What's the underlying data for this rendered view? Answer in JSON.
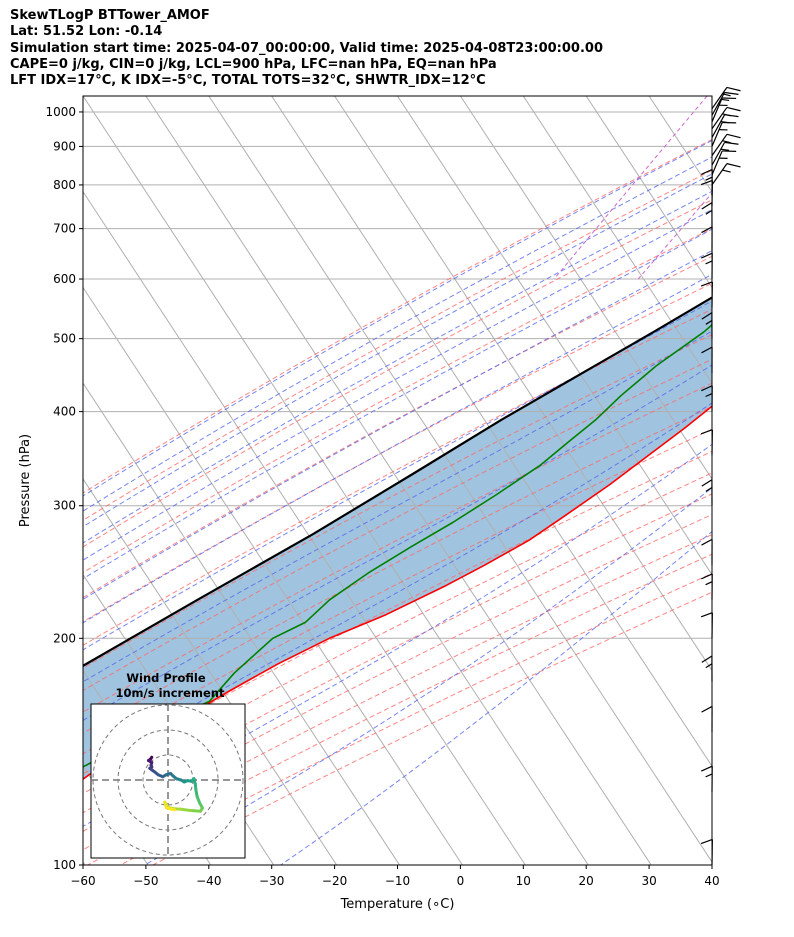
{
  "header": {
    "line1": "SkewTLogP BTTower_AMOF",
    "line2": "Lat: 51.52   Lon: -0.14",
    "line3": "Simulation start time: 2025-04-07_00:00:00, Valid time: 2025-04-08T23:00:00.00",
    "line4": "CAPE=0 j/kg, CIN=0 j/kg, LCL=900 hPa, LFC=nan hPa, EQ=nan hPa",
    "line5": "LFT IDX=17°C, K IDX=-5°C, TOTAL TOTS=32°C, SHWTR_IDX=12°C"
  },
  "colors": {
    "temperature": "#ff0000",
    "dewpoint": "#008000",
    "parcel": "#000000",
    "shade": "#a0c4df",
    "dry_adiabat": "#ff6666",
    "moist_adiabat": "#5566ee",
    "mixing_ratio": "#cc66cc"
  },
  "chart_data": [
    {
      "type": "line",
      "kind": "skew-t log-p",
      "xlabel": "Temperature (∘C)",
      "ylabel": "Pressure (hPa)",
      "xlim": [
        -60,
        40
      ],
      "ylim": [
        1050,
        100
      ],
      "yscale": "log",
      "grid": true,
      "xticks": [
        "−60",
        "−50",
        "−40",
        "−30",
        "−20",
        "−10",
        "0",
        "10",
        "20",
        "30",
        "40"
      ],
      "yticks": [
        "1000",
        "900",
        "800",
        "700",
        "600",
        "500",
        "400",
        "300",
        "200",
        "100"
      ],
      "series": [
        {
          "key": "temperature",
          "points": [
            [
              8.0,
              1010
            ],
            [
              7.8,
              995
            ],
            [
              7.5,
              960
            ],
            [
              7.0,
              930
            ],
            [
              7.5,
              900
            ],
            [
              8.5,
              870
            ],
            [
              9.0,
              850
            ],
            [
              9.0,
              800
            ],
            [
              8.5,
              760
            ],
            [
              7.6,
              700
            ],
            [
              6.5,
              650
            ],
            [
              3.5,
              575
            ],
            [
              -1.0,
              500
            ],
            [
              -5.5,
              440
            ],
            [
              -10.0,
              380
            ],
            [
              -16.0,
              320
            ],
            [
              -20.0,
              290
            ],
            [
              -23.0,
              270
            ],
            [
              -27.5,
              250
            ],
            [
              -31.5,
              235
            ],
            [
              -38.0,
              215
            ],
            [
              -44.5,
              200
            ],
            [
              -50.0,
              185
            ],
            [
              -55.0,
              170
            ],
            [
              -60.0,
              155
            ],
            [
              -64.5,
              145
            ],
            [
              -67.5,
              135
            ],
            [
              -70.5,
              125
            ],
            [
              -73.5,
              115
            ],
            [
              -77.0,
              100
            ]
          ]
        },
        {
          "key": "dewpoint",
          "points": [
            [
              0.5,
              1010
            ],
            [
              0.4,
              995
            ],
            [
              -1.5,
              980
            ],
            [
              -3.5,
              940
            ],
            [
              -6.0,
              910
            ],
            [
              -8.0,
              880
            ],
            [
              -9.0,
              860
            ],
            [
              -9.6,
              820
            ],
            [
              -9.7,
              790
            ],
            [
              -9.8,
              760
            ],
            [
              -10.0,
              720
            ],
            [
              -9.5,
              690
            ],
            [
              -9.0,
              660
            ],
            [
              -10.5,
              620
            ],
            [
              -12.5,
              580
            ],
            [
              -15.0,
              550
            ],
            [
              -17.0,
              510
            ],
            [
              -21.0,
              460
            ],
            [
              -23.5,
              420
            ],
            [
              -25.0,
              390
            ],
            [
              -27.0,
              365
            ],
            [
              -29.0,
              340
            ],
            [
              -33.0,
              310
            ],
            [
              -37.0,
              285
            ],
            [
              -41.0,
              265
            ],
            [
              -45.0,
              245
            ],
            [
              -48.5,
              225
            ],
            [
              -50.0,
              210
            ],
            [
              -53.5,
              200
            ],
            [
              -56.0,
              180
            ],
            [
              -57.0,
              165
            ],
            [
              -62.0,
              155
            ],
            [
              -68.0,
              140
            ],
            [
              -75.0,
              125
            ],
            [
              -82.0,
              110
            ],
            [
              -86.0,
              100
            ]
          ]
        },
        {
          "key": "parcel",
          "points": [
            [
              8.0,
              1010
            ],
            [
              2.0,
              940
            ],
            [
              -0.1,
              900
            ],
            [
              -3.2,
              820
            ],
            [
              -5.6,
              760
            ],
            [
              -8.9,
              700
            ],
            [
              -13.5,
              630
            ],
            [
              -19.0,
              570
            ],
            [
              -25.0,
              510
            ],
            [
              -32.0,
              450
            ],
            [
              -40.0,
              390
            ],
            [
              -48.5,
              330
            ],
            [
              -58.0,
              275
            ],
            [
              -69.5,
              225
            ],
            [
              -82.0,
              180
            ],
            [
              -96.0,
              140
            ],
            [
              -108.0,
              110
            ],
            [
              -110.0,
              100
            ]
          ]
        }
      ],
      "shading": {
        "between": [
          "temperature",
          "parcel"
        ]
      },
      "wind_barbs_hpa": [
        1010,
        990,
        970,
        950,
        925,
        900,
        875,
        850,
        825,
        800,
        775,
        750,
        700,
        650,
        600,
        550,
        500,
        450,
        400,
        350,
        300,
        250,
        225,
        200,
        175,
        150,
        125,
        100
      ]
    },
    {
      "type": "scatter",
      "kind": "hodograph",
      "title": "Wind Profile",
      "subtitle": "10m/s increment",
      "ring_increment_ms": 10,
      "rings": 3,
      "points": [
        [
          -2.5,
          3.5
        ],
        [
          -2.7,
          3.2
        ],
        [
          -3.0,
          3.0
        ],
        [
          -2.5,
          2.7
        ],
        [
          -2.6,
          2.3
        ],
        [
          -2.5,
          2.0
        ],
        [
          -2.8,
          1.8
        ],
        [
          -2.4,
          1.5
        ],
        [
          -2.0,
          1.2
        ],
        [
          -1.5,
          0.8
        ],
        [
          -0.8,
          0.5
        ],
        [
          -0.3,
          0.8
        ],
        [
          0.4,
          1.0
        ],
        [
          0.8,
          0.6
        ],
        [
          1.3,
          0.2
        ],
        [
          2.0,
          0.0
        ],
        [
          2.5,
          -0.3
        ],
        [
          3.0,
          -0.1
        ],
        [
          3.6,
          -0.2
        ],
        [
          4.0,
          0.2
        ],
        [
          4.2,
          -0.6
        ],
        [
          4.3,
          -1.6
        ],
        [
          4.5,
          -2.6
        ],
        [
          4.9,
          -3.6
        ],
        [
          5.3,
          -4.3
        ],
        [
          5.0,
          -4.8
        ],
        [
          3.5,
          -4.7
        ],
        [
          2.0,
          -4.5
        ],
        [
          0.8,
          -4.4
        ],
        [
          0.0,
          -4.2
        ],
        [
          -0.5,
          -3.4
        ],
        [
          -0.2,
          -4.3
        ],
        [
          1.0,
          -4.6
        ]
      ],
      "colormap": "viridis"
    }
  ]
}
